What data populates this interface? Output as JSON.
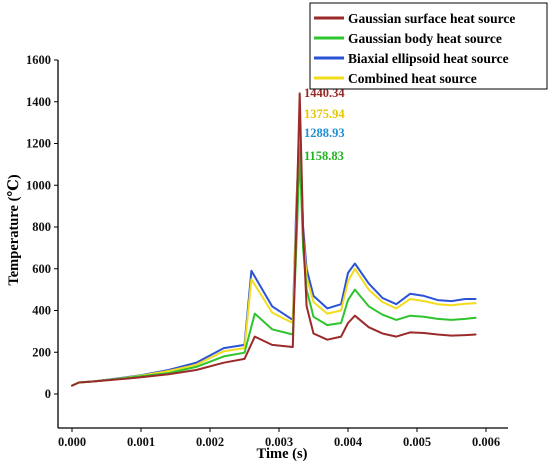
{
  "chart_data": {
    "type": "line",
    "title": "",
    "xlabel": "Time (s)",
    "ylabel": "Temperature (℃)",
    "xlim": [
      0,
      0.006
    ],
    "ylim": [
      0,
      1600
    ],
    "xticks": [
      "0.000",
      "0.001",
      "0.002",
      "0.003",
      "0.004",
      "0.005",
      "0.006"
    ],
    "yticks": [
      "0",
      "200",
      "400",
      "600",
      "800",
      "1000",
      "1200",
      "1400",
      "1600"
    ],
    "legend": {
      "placement": "top-right"
    },
    "series": [
      {
        "name": "Gaussian surface heat source",
        "color": "#9b2a2a",
        "x": [
          0.0,
          0.0001,
          0.0003,
          0.0006,
          0.001,
          0.0014,
          0.0018,
          0.0022,
          0.0025,
          0.00265,
          0.0029,
          0.0032,
          0.00325,
          0.0033,
          0.00335,
          0.0034,
          0.0035,
          0.0037,
          0.0039,
          0.004,
          0.0041,
          0.0043,
          0.0045,
          0.0047,
          0.0049,
          0.0051,
          0.0053,
          0.0055,
          0.0057,
          0.00585
        ],
        "values": [
          40,
          55,
          60,
          68,
          80,
          95,
          115,
          150,
          168,
          275,
          235,
          225,
          800,
          1440,
          780,
          420,
          290,
          260,
          275,
          340,
          375,
          320,
          290,
          275,
          295,
          292,
          285,
          280,
          282,
          285
        ]
      },
      {
        "name": "Gaussian body heat source",
        "color": "#2ec42e",
        "x": [
          0.0,
          0.0001,
          0.0003,
          0.0006,
          0.001,
          0.0014,
          0.0018,
          0.0022,
          0.0025,
          0.00265,
          0.0029,
          0.0032,
          0.00325,
          0.0033,
          0.00335,
          0.0034,
          0.0035,
          0.0037,
          0.0039,
          0.004,
          0.0041,
          0.0043,
          0.0045,
          0.0047,
          0.0049,
          0.0051,
          0.0053,
          0.0055,
          0.0057,
          0.00585
        ],
        "values": [
          40,
          55,
          60,
          70,
          85,
          100,
          130,
          180,
          198,
          385,
          310,
          285,
          700,
          1159,
          700,
          500,
          370,
          330,
          340,
          450,
          500,
          420,
          380,
          355,
          375,
          370,
          360,
          355,
          360,
          365
        ]
      },
      {
        "name": "Biaxial ellipsoid heat source",
        "color": "#2b53d6",
        "x": [
          0.0,
          0.0001,
          0.0003,
          0.0006,
          0.001,
          0.0014,
          0.0018,
          0.0022,
          0.0025,
          0.0026,
          0.0029,
          0.0032,
          0.00325,
          0.0033,
          0.00335,
          0.0034,
          0.0035,
          0.0037,
          0.0039,
          0.004,
          0.0041,
          0.0043,
          0.0045,
          0.0047,
          0.0049,
          0.0051,
          0.0053,
          0.0055,
          0.0057,
          0.00585
        ],
        "values": [
          40,
          55,
          60,
          72,
          90,
          115,
          150,
          220,
          235,
          590,
          420,
          355,
          900,
          1289,
          800,
          600,
          470,
          410,
          430,
          580,
          625,
          530,
          460,
          430,
          480,
          470,
          450,
          445,
          455,
          455
        ]
      },
      {
        "name": "Combined heat source",
        "color": "#f2dc1e",
        "x": [
          0.0,
          0.0001,
          0.0003,
          0.0006,
          0.001,
          0.0014,
          0.0018,
          0.0022,
          0.0025,
          0.0026,
          0.0029,
          0.0032,
          0.00325,
          0.0033,
          0.00335,
          0.0034,
          0.0035,
          0.0037,
          0.0039,
          0.004,
          0.0041,
          0.0043,
          0.0045,
          0.0047,
          0.0049,
          0.0051,
          0.0053,
          0.0055,
          0.0057,
          0.00585
        ],
        "values": [
          40,
          55,
          60,
          70,
          88,
          110,
          140,
          205,
          220,
          550,
          390,
          340,
          850,
          1376,
          760,
          560,
          440,
          385,
          400,
          540,
          600,
          500,
          440,
          410,
          455,
          445,
          430,
          425,
          432,
          435
        ]
      }
    ],
    "annotations": [
      {
        "text": "1440.34",
        "color": "#9b2a2a",
        "x": 0.0033,
        "y": 1440
      },
      {
        "text": "1375.94",
        "color": "#e6c800",
        "x": 0.0033,
        "y": 1376
      },
      {
        "text": "1288.93",
        "color": "#1f8fd6",
        "x": 0.0033,
        "y": 1289
      },
      {
        "text": "1158.83",
        "color": "#1fb51f",
        "x": 0.0033,
        "y": 1159
      }
    ]
  }
}
